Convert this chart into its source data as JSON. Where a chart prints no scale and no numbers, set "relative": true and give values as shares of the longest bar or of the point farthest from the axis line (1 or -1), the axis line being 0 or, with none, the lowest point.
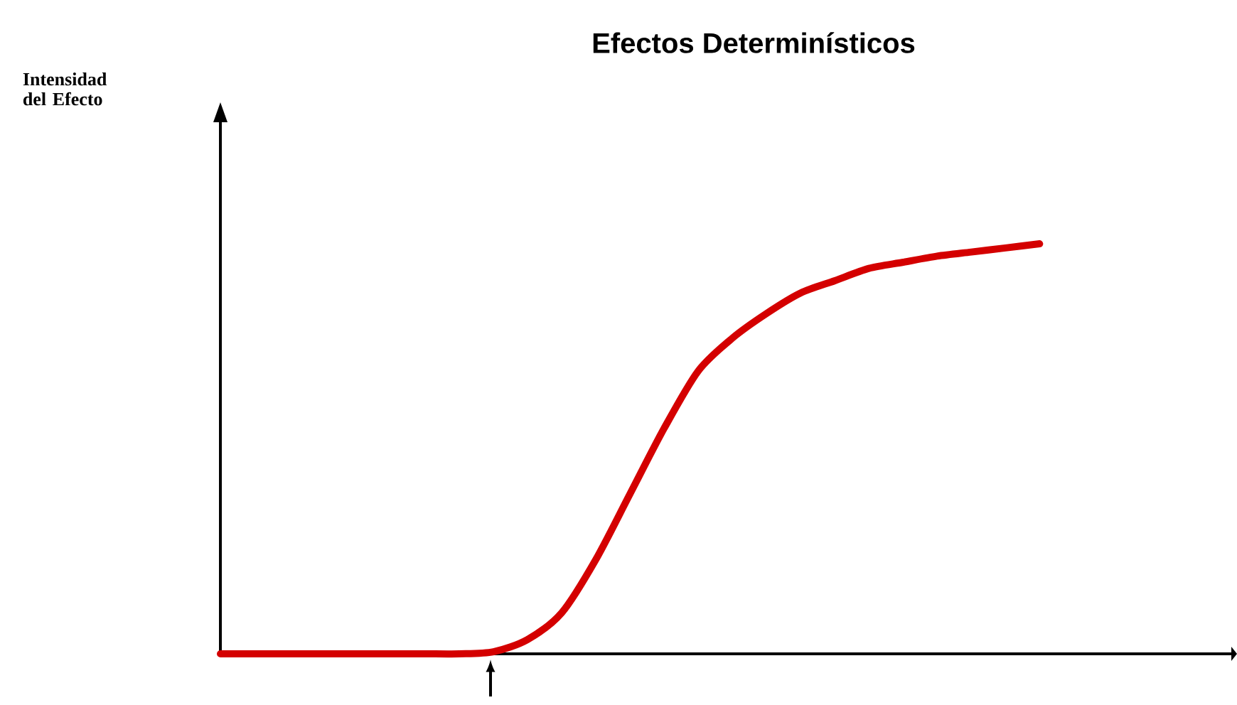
{
  "chart_data": {
    "type": "line",
    "title": "Efectos Determinísticos",
    "annotations": [
      "Intensidad del Efecto"
    ],
    "relative": true,
    "color": "#d40000",
    "categories": [
      null,
      null,
      null,
      null,
      null,
      null,
      null,
      null,
      null,
      null,
      null,
      null,
      null,
      null,
      null,
      null,
      null,
      null,
      null,
      null,
      null,
      null,
      null,
      null,
      null,
      null,
      null,
      null,
      null,
      null
    ],
    "values": [
      0,
      0,
      0,
      0,
      0,
      0,
      0,
      0,
      0.005,
      0.035,
      0.1,
      0.23,
      0.39,
      0.55,
      0.69,
      0.77,
      0.83,
      0.88,
      0.91,
      0.94,
      0.955,
      0.97,
      0.98,
      0.99,
      1,
      null,
      null,
      null,
      null,
      null
    ]
  }
}
